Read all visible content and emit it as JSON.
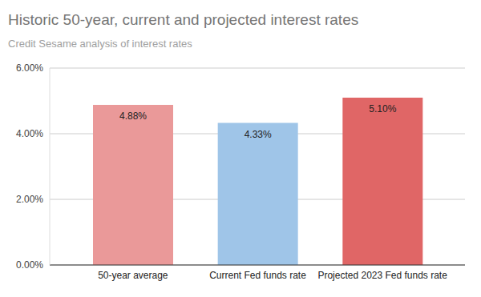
{
  "chart_data": {
    "type": "bar",
    "title": "Historic 50-year, current and projected interest rates",
    "subtitle": "Credit Sesame analysis of interest rates",
    "categories": [
      "50-year average",
      "Current Fed funds rate",
      "Projected 2023 Fed funds rate"
    ],
    "values": [
      4.88,
      4.33,
      5.1
    ],
    "value_labels": [
      "4.88%",
      "4.33%",
      "5.10%"
    ],
    "colors": [
      "#ea9999",
      "#9fc5e8",
      "#e06666"
    ],
    "ylim": [
      0,
      6
    ],
    "yticks": [
      {
        "value": 0,
        "label": "0.00%"
      },
      {
        "value": 2,
        "label": "2.00%"
      },
      {
        "value": 4,
        "label": "4.00%"
      },
      {
        "value": 6,
        "label": "6.00%"
      }
    ],
    "grid": true,
    "data_labels": true
  }
}
